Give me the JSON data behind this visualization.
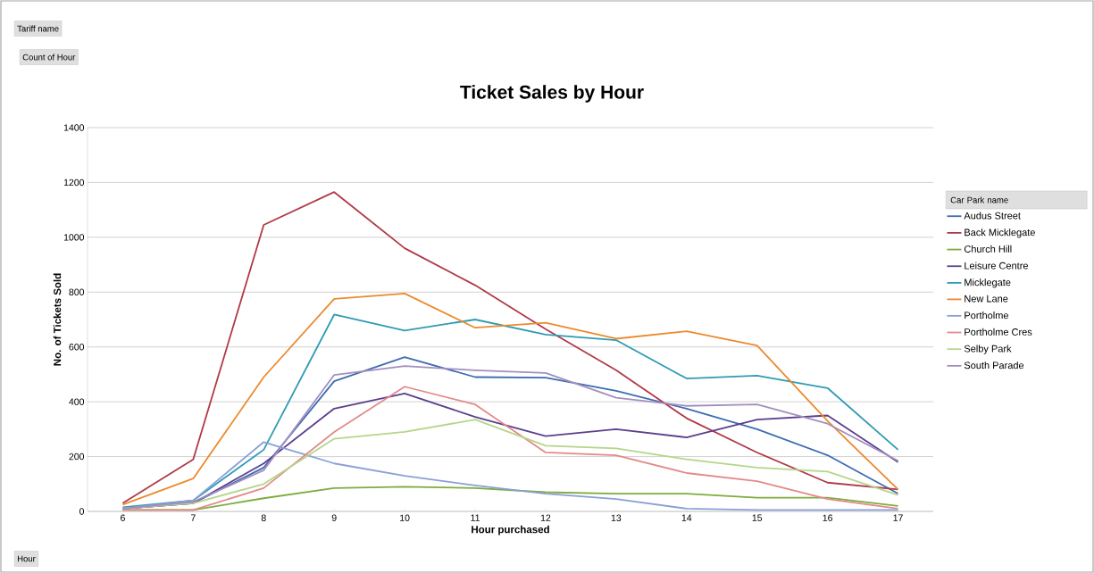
{
  "chart_data": {
    "type": "line",
    "title": "Ticket Sales by Hour",
    "xlabel": "Hour purchased",
    "ylabel": "No. of Tickets Sold",
    "legend_title": "Car Park name",
    "annotations": [
      "Tariff name",
      "Count of Hour",
      "Hour"
    ],
    "x": [
      6,
      7,
      8,
      9,
      10,
      11,
      12,
      13,
      14,
      15,
      16,
      17
    ],
    "xlim": [
      5.5,
      17.5
    ],
    "xticks": [
      6,
      7,
      8,
      9,
      10,
      11,
      12,
      13,
      14,
      15,
      16,
      17
    ],
    "ylim": [
      0,
      1400
    ],
    "yticks": [
      0,
      200,
      400,
      600,
      800,
      1000,
      1200,
      1400
    ],
    "grid": "y",
    "legend": "right",
    "marker": "none",
    "line_style": "solid",
    "series": [
      {
        "name": "Audus Street",
        "color": "#3d6cb1",
        "values": [
          10,
          30,
          160,
          475,
          563,
          490,
          488,
          440,
          375,
          300,
          205,
          65
        ]
      },
      {
        "name": "Back Micklegate",
        "color": "#b03a48",
        "values": [
          30,
          190,
          1045,
          1165,
          960,
          825,
          665,
          515,
          340,
          215,
          105,
          80
        ]
      },
      {
        "name": "Church Hill",
        "color": "#7eac3e",
        "values": [
          5,
          5,
          48,
          85,
          90,
          85,
          70,
          65,
          65,
          50,
          50,
          20
        ]
      },
      {
        "name": "Leisure Centre",
        "color": "#5b3f8c",
        "values": [
          10,
          30,
          175,
          375,
          430,
          345,
          275,
          300,
          270,
          335,
          350,
          180
        ]
      },
      {
        "name": "Micklegate",
        "color": "#2f9bb3",
        "values": [
          15,
          40,
          225,
          718,
          660,
          700,
          645,
          625,
          485,
          495,
          450,
          225
        ]
      },
      {
        "name": "New Lane",
        "color": "#ec8a2d",
        "values": [
          25,
          120,
          490,
          775,
          795,
          670,
          688,
          630,
          657,
          605,
          330,
          80
        ]
      },
      {
        "name": "Portholme",
        "color": "#8a9fd6",
        "values": [
          10,
          40,
          253,
          175,
          130,
          95,
          65,
          45,
          10,
          5,
          5,
          5
        ]
      },
      {
        "name": "Portholme Cres",
        "color": "#e38a8a",
        "values": [
          5,
          5,
          85,
          290,
          455,
          390,
          215,
          205,
          140,
          110,
          45,
          10
        ]
      },
      {
        "name": "Selby Park",
        "color": "#b4d68a",
        "values": [
          10,
          30,
          100,
          265,
          290,
          335,
          240,
          230,
          190,
          160,
          145,
          60
        ]
      },
      {
        "name": "South Parade",
        "color": "#a38fbf",
        "values": [
          10,
          35,
          150,
          498,
          530,
          515,
          505,
          415,
          385,
          390,
          320,
          185
        ]
      }
    ]
  }
}
